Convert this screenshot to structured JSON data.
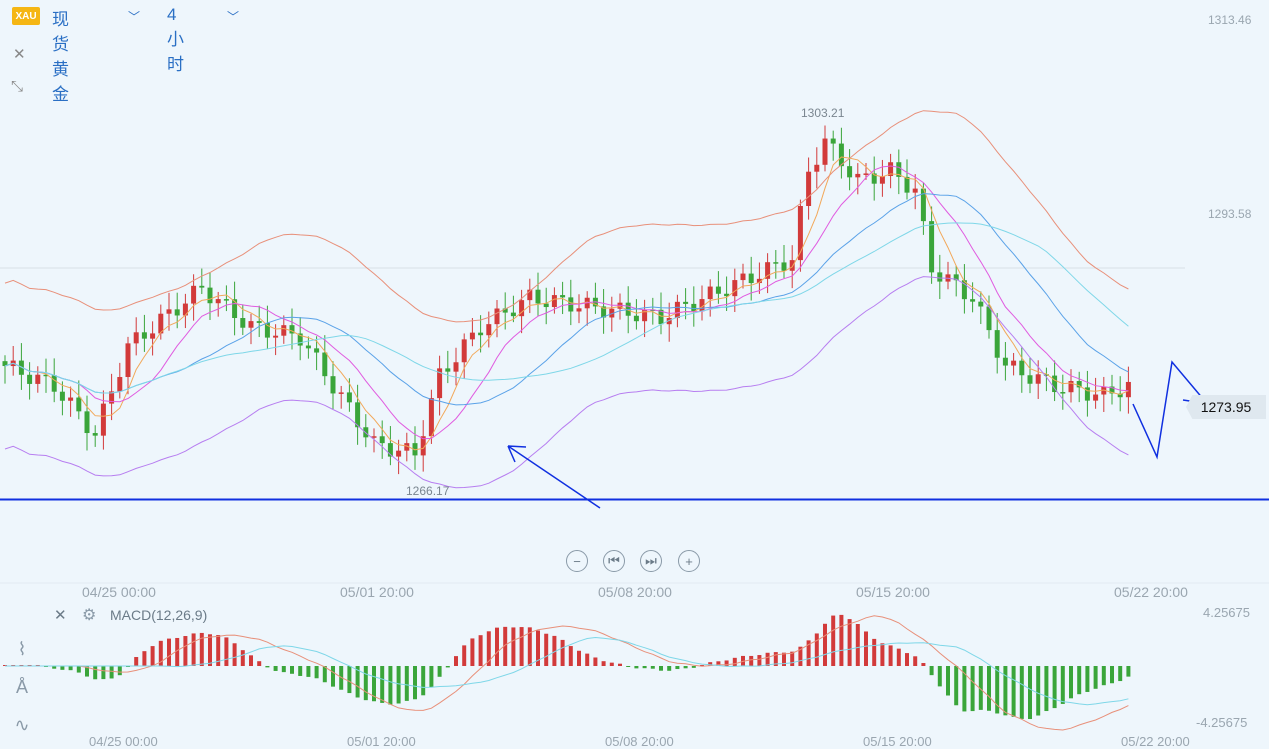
{
  "header": {
    "badge": "XAU",
    "symbol": "现货黄金",
    "period": "4小时",
    "symbol_chevron": "chevron-down-icon",
    "period_chevron": "chevron-down-icon"
  },
  "side_icons": {
    "close": "close-icon",
    "collapse": "collapse-icon"
  },
  "controls": {
    "zoom_out": "−",
    "prev": "⏮",
    "next": "⏭",
    "zoom_in": "+"
  },
  "macd": {
    "label": "MACD(12,26,9)"
  },
  "chart_data": [
    {
      "type": "candlestick",
      "title": "现货黄金 4小时",
      "y_axis_labels": [
        "1313.46",
        "1293.58"
      ],
      "ylim": [
        1263,
        1313.46
      ],
      "x_ticks": [
        "04/25 00:00",
        "05/01 20:00",
        "05/08 20:00",
        "05/15 20:00",
        "05/22 20:00"
      ],
      "annotations": {
        "high": "1303.21",
        "low": "1266.17",
        "last_price": "1273.95",
        "support_level": 1266.17
      },
      "colors": {
        "up": "#d23a3a",
        "down": "#3aa53a",
        "ma_fast": "#f2a85a",
        "ma_mid": "#e05ce0",
        "ma_slow": "#5aa2e8",
        "ma_slower": "#7fd7e8",
        "boll_upper": "#e8907a",
        "boll_lower": "#b77ef0",
        "annotation": "#1030e0"
      },
      "indicators": [
        "MA",
        "BOLL"
      ]
    },
    {
      "type": "bar",
      "title": "MACD(12,26,9)",
      "y_axis_labels": [
        "4.25675",
        "-4.25675"
      ],
      "x_ticks": [
        "04/25 00:00",
        "05/01 20:00",
        "05/08 20:00",
        "05/15 20:00",
        "05/22 20:00"
      ],
      "colors": {
        "positive": "#d23a3a",
        "negative": "#3aa53a",
        "dif": "#e8907a",
        "dea": "#7fd7e8"
      }
    }
  ]
}
